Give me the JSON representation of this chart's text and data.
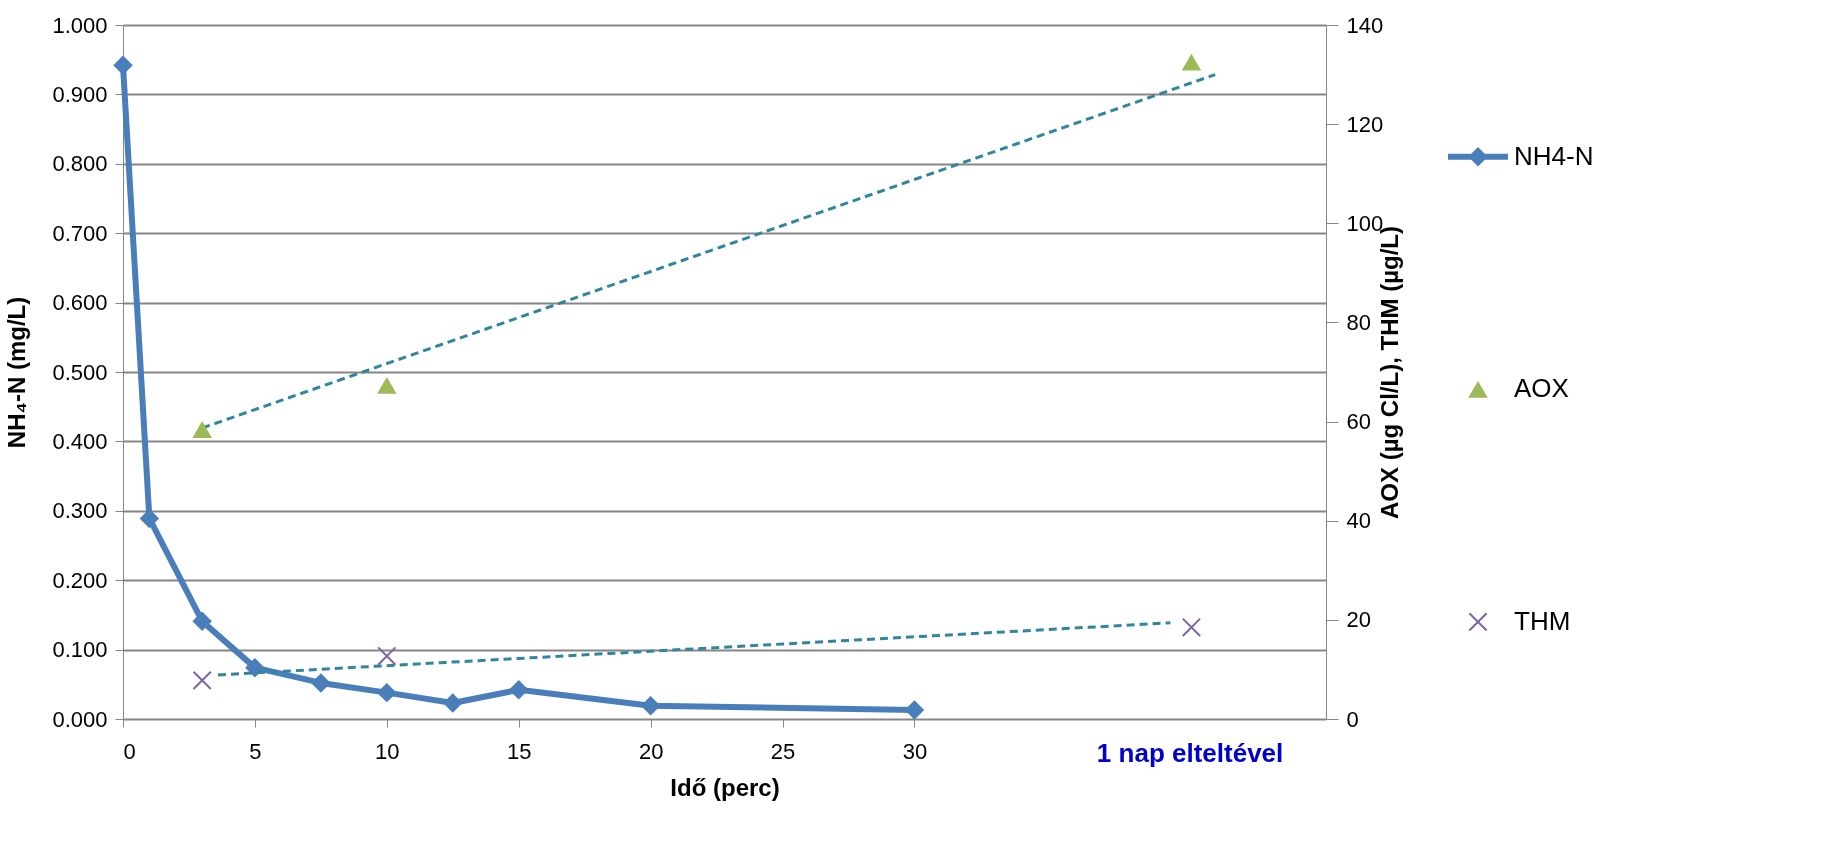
{
  "chart_data": {
    "type": "line",
    "xlabel": "Idő (perc)",
    "ylabel": "NH₄-N (mg/L)",
    "y2label": "AOX (µg Cl/L), THM (µg/L)",
    "xlim": [
      0,
      45.6
    ],
    "xticks": [
      0,
      5,
      10,
      15,
      20,
      25,
      30
    ],
    "ylim": [
      0,
      1
    ],
    "yticks": [
      {
        "value": 0,
        "label": "0.000"
      },
      {
        "value": 0.1,
        "label": "0.100"
      },
      {
        "value": 0.2,
        "label": "0.200"
      },
      {
        "value": 0.3,
        "label": "0.300"
      },
      {
        "value": 0.4,
        "label": "0.400"
      },
      {
        "value": 0.5,
        "label": "0.500"
      },
      {
        "value": 0.6,
        "label": "0.600"
      },
      {
        "value": 0.7,
        "label": "0.700"
      },
      {
        "value": 0.8,
        "label": "0.800"
      },
      {
        "value": 0.9,
        "label": "0.900"
      },
      {
        "value": 1,
        "label": "1.000"
      }
    ],
    "y2lim": [
      0,
      140
    ],
    "y2ticks": [
      0,
      20,
      40,
      60,
      80,
      100,
      120,
      140
    ],
    "grid": "y",
    "legend": "right",
    "annotations": [
      "1 nap elteltével"
    ],
    "series": [
      {
        "name": "NH4-N",
        "color": "#4a7ebb",
        "marker": "diamond",
        "line_style": "solid",
        "x": [
          0,
          1,
          3,
          5,
          7.5,
          10,
          12.5,
          15,
          20,
          30
        ],
        "values": [
          0.942,
          0.289,
          0.141,
          0.074,
          0.052,
          0.038,
          0.023,
          0.042,
          0.019,
          0.013
        ]
      },
      {
        "type": "line",
        "axis": "y2",
        "color": "#31859c",
        "marker": "none",
        "line_style": "dashed",
        "x": [
          3,
          41.4
        ],
        "values": [
          58.7,
          130.0
        ]
      },
      {
        "type": "line",
        "axis": "y2",
        "color": "#31859c",
        "marker": "none",
        "line_style": "dashed",
        "x": [
          3.6,
          39.7
        ],
        "values": [
          8.9,
          19.4
        ]
      },
      {
        "name": "AOX",
        "type": "scatter",
        "axis": "y2",
        "color": "#9bbb59",
        "marker": "triangle",
        "x": [
          3,
          10,
          40.5
        ],
        "values": [
          58.4,
          67.3,
          132.5
        ]
      },
      {
        "name": "THM",
        "type": "scatter",
        "axis": "y2",
        "color": "#8064a2",
        "marker": "cross",
        "x": [
          3,
          10,
          40.5
        ],
        "values": [
          7.8,
          12.7,
          18.5
        ]
      }
    ]
  }
}
